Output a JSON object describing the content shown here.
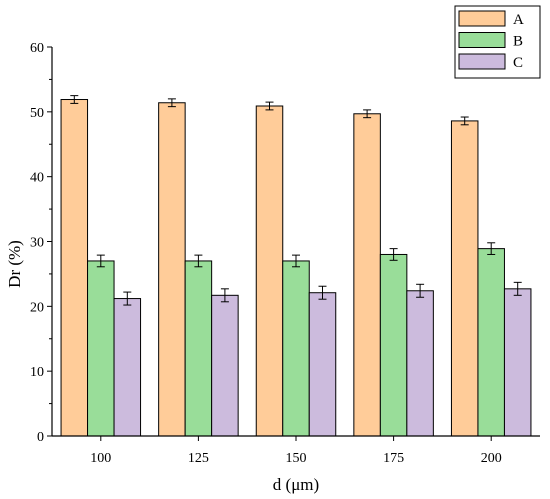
{
  "chart_data": {
    "type": "bar",
    "xlabel": "d (μm)",
    "ylabel": "Dr (%)",
    "categories": [
      "100",
      "125",
      "150",
      "175",
      "200"
    ],
    "ylim": [
      0,
      60
    ],
    "yticks": [
      "0",
      "10",
      "20",
      "30",
      "40",
      "50",
      "60"
    ],
    "legend_position": "top-right",
    "grid": false,
    "series": [
      {
        "name": "A",
        "color": "#FFCC99",
        "values": [
          51.9,
          51.4,
          50.9,
          49.7,
          48.6
        ],
        "errors": [
          0.6,
          0.6,
          0.6,
          0.6,
          0.6
        ]
      },
      {
        "name": "B",
        "color": "#99DD99",
        "values": [
          27.0,
          27.0,
          27.0,
          28.0,
          28.9
        ],
        "errors": [
          0.9,
          0.9,
          0.9,
          0.9,
          0.9
        ]
      },
      {
        "name": "C",
        "color": "#CCBBDD",
        "values": [
          21.2,
          21.7,
          22.1,
          22.4,
          22.7
        ],
        "errors": [
          1.0,
          1.0,
          1.0,
          1.0,
          1.0
        ]
      }
    ]
  }
}
